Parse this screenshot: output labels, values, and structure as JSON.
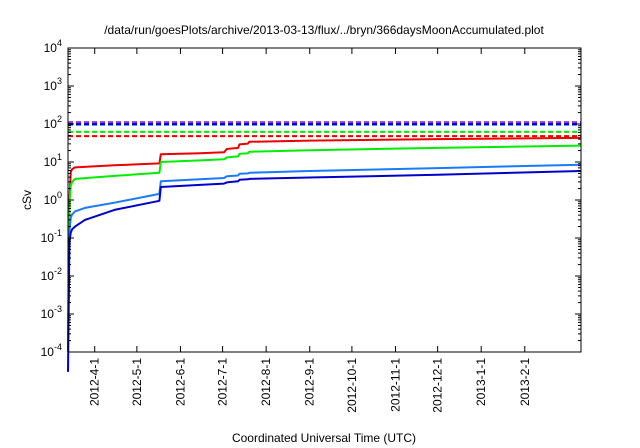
{
  "chart_data": {
    "type": "line",
    "title": "/data/run/goesPlots/archive/2013-03-13/flux/../bryn/366daysMoonAccumulated.plot",
    "xlabel": "Coordinated Universal Time (UTC)",
    "ylabel": "cSv",
    "y_scale": "log",
    "ylim": [
      0.0001,
      10000
    ],
    "xlim": [
      "2012-03-13",
      "2013-03-13"
    ],
    "grid": false,
    "legend": "none",
    "y_ticks": [
      {
        "base": "10",
        "exp": "-4",
        "value": 0.0001
      },
      {
        "base": "10",
        "exp": "-3",
        "value": 0.001
      },
      {
        "base": "10",
        "exp": "-2",
        "value": 0.01
      },
      {
        "base": "10",
        "exp": "-1",
        "value": 0.1
      },
      {
        "base": "10",
        "exp": "0",
        "value": 1
      },
      {
        "base": "10",
        "exp": "1",
        "value": 10
      },
      {
        "base": "10",
        "exp": "2",
        "value": 100
      },
      {
        "base": "10",
        "exp": "3",
        "value": 1000
      },
      {
        "base": "10",
        "exp": "4",
        "value": 10000
      }
    ],
    "x_ticks": [
      {
        "label": "2012-4-1",
        "date": "2012-04-01"
      },
      {
        "label": "2012-5-1",
        "date": "2012-05-01"
      },
      {
        "label": "2012-6-1",
        "date": "2012-06-01"
      },
      {
        "label": "2012-7-1",
        "date": "2012-07-01"
      },
      {
        "label": "2012-8-1",
        "date": "2012-08-01"
      },
      {
        "label": "2012-9-1",
        "date": "2012-09-01"
      },
      {
        "label": "2012-10-1",
        "date": "2012-10-01"
      },
      {
        "label": "2012-11-1",
        "date": "2012-11-01"
      },
      {
        "label": "2012-12-1",
        "date": "2012-12-01"
      },
      {
        "label": "2013-1-1",
        "date": "2013-01-01"
      },
      {
        "label": "2013-2-1",
        "date": "2013-02-01"
      }
    ],
    "series": [
      {
        "color": "#ee0000",
        "style": "solid",
        "points": [
          [
            "2012-03-13",
            0.00015
          ],
          [
            "2012-03-14",
            1.0
          ],
          [
            "2012-03-15",
            5.5
          ],
          [
            "2012-03-16",
            6.5
          ],
          [
            "2012-03-18",
            7.2
          ],
          [
            "2012-04-15",
            8.2
          ],
          [
            "2012-05-17",
            9.2
          ],
          [
            "2012-05-18",
            16.0
          ],
          [
            "2012-06-15",
            17.0
          ],
          [
            "2012-07-02",
            18.0
          ],
          [
            "2012-07-04",
            22.0
          ],
          [
            "2012-07-12",
            23.5
          ],
          [
            "2012-07-13",
            29.0
          ],
          [
            "2012-07-19",
            30.5
          ],
          [
            "2012-07-20",
            34.0
          ],
          [
            "2012-09-01",
            36.5
          ],
          [
            "2012-12-01",
            40.0
          ],
          [
            "2013-03-13",
            43.0
          ]
        ]
      },
      {
        "color": "#00ee00",
        "style": "solid",
        "points": [
          [
            "2012-03-13",
            0.00012
          ],
          [
            "2012-03-14",
            0.8
          ],
          [
            "2012-03-15",
            2.4
          ],
          [
            "2012-03-16",
            3.0
          ],
          [
            "2012-03-18",
            3.6
          ],
          [
            "2012-04-15",
            4.3
          ],
          [
            "2012-05-17",
            5.2
          ],
          [
            "2012-05-18",
            10.0
          ],
          [
            "2012-06-15",
            11.0
          ],
          [
            "2012-07-02",
            11.8
          ],
          [
            "2012-07-04",
            13.2
          ],
          [
            "2012-07-12",
            14.0
          ],
          [
            "2012-07-13",
            16.3
          ],
          [
            "2012-07-19",
            17.0
          ],
          [
            "2012-07-20",
            18.5
          ],
          [
            "2012-09-01",
            20.5
          ],
          [
            "2012-12-01",
            23.5
          ],
          [
            "2013-03-13",
            27.0
          ]
        ]
      },
      {
        "color": "#1a7aff",
        "style": "solid",
        "points": [
          [
            "2012-03-13",
            0.0001
          ],
          [
            "2012-03-14",
            0.15
          ],
          [
            "2012-03-15",
            0.35
          ],
          [
            "2012-03-16",
            0.42
          ],
          [
            "2012-03-18",
            0.5
          ],
          [
            "2012-03-25",
            0.62
          ],
          [
            "2012-04-15",
            0.85
          ],
          [
            "2012-05-17",
            1.45
          ],
          [
            "2012-05-18",
            3.1
          ],
          [
            "2012-06-15",
            3.5
          ],
          [
            "2012-07-02",
            3.8
          ],
          [
            "2012-07-04",
            4.2
          ],
          [
            "2012-07-12",
            4.4
          ],
          [
            "2012-07-13",
            4.9
          ],
          [
            "2012-07-19",
            5.0
          ],
          [
            "2012-07-20",
            5.2
          ],
          [
            "2012-09-01",
            5.8
          ],
          [
            "2012-12-01",
            6.9
          ],
          [
            "2013-03-13",
            8.5
          ]
        ]
      },
      {
        "color": "#0000cc",
        "style": "solid",
        "points": [
          [
            "2012-03-13",
            3e-05
          ],
          [
            "2012-03-14",
            0.08
          ],
          [
            "2012-03-15",
            0.14
          ],
          [
            "2012-03-16",
            0.17
          ],
          [
            "2012-03-18",
            0.2
          ],
          [
            "2012-03-25",
            0.3
          ],
          [
            "2012-04-15",
            0.55
          ],
          [
            "2012-05-17",
            0.95
          ],
          [
            "2012-05-18",
            2.2
          ],
          [
            "2012-06-15",
            2.5
          ],
          [
            "2012-07-02",
            2.7
          ],
          [
            "2012-07-04",
            2.9
          ],
          [
            "2012-07-12",
            3.1
          ],
          [
            "2012-07-13",
            3.4
          ],
          [
            "2012-07-19",
            3.5
          ],
          [
            "2012-07-20",
            3.6
          ],
          [
            "2012-09-01",
            3.9
          ],
          [
            "2012-12-01",
            4.6
          ],
          [
            "2013-03-13",
            5.8
          ]
        ]
      },
      {
        "color": "#ee0000",
        "style": "dashed",
        "points": [
          [
            "2012-03-13",
            48
          ],
          [
            "2013-03-13",
            48
          ]
        ]
      },
      {
        "color": "#00ee00",
        "style": "dashed",
        "points": [
          [
            "2012-03-13",
            62
          ],
          [
            "2013-03-13",
            62
          ]
        ]
      },
      {
        "color": "#1a7aff",
        "style": "dashed",
        "points": [
          [
            "2012-03-13",
            95
          ],
          [
            "2013-03-13",
            95
          ]
        ]
      },
      {
        "color": "#0000cc",
        "style": "dashed",
        "points": [
          [
            "2012-03-13",
            100
          ],
          [
            "2013-03-13",
            100
          ]
        ]
      },
      {
        "color": "#9933cc",
        "style": "dashed",
        "points": [
          [
            "2012-03-13",
            112
          ],
          [
            "2013-03-13",
            112
          ]
        ]
      }
    ]
  }
}
